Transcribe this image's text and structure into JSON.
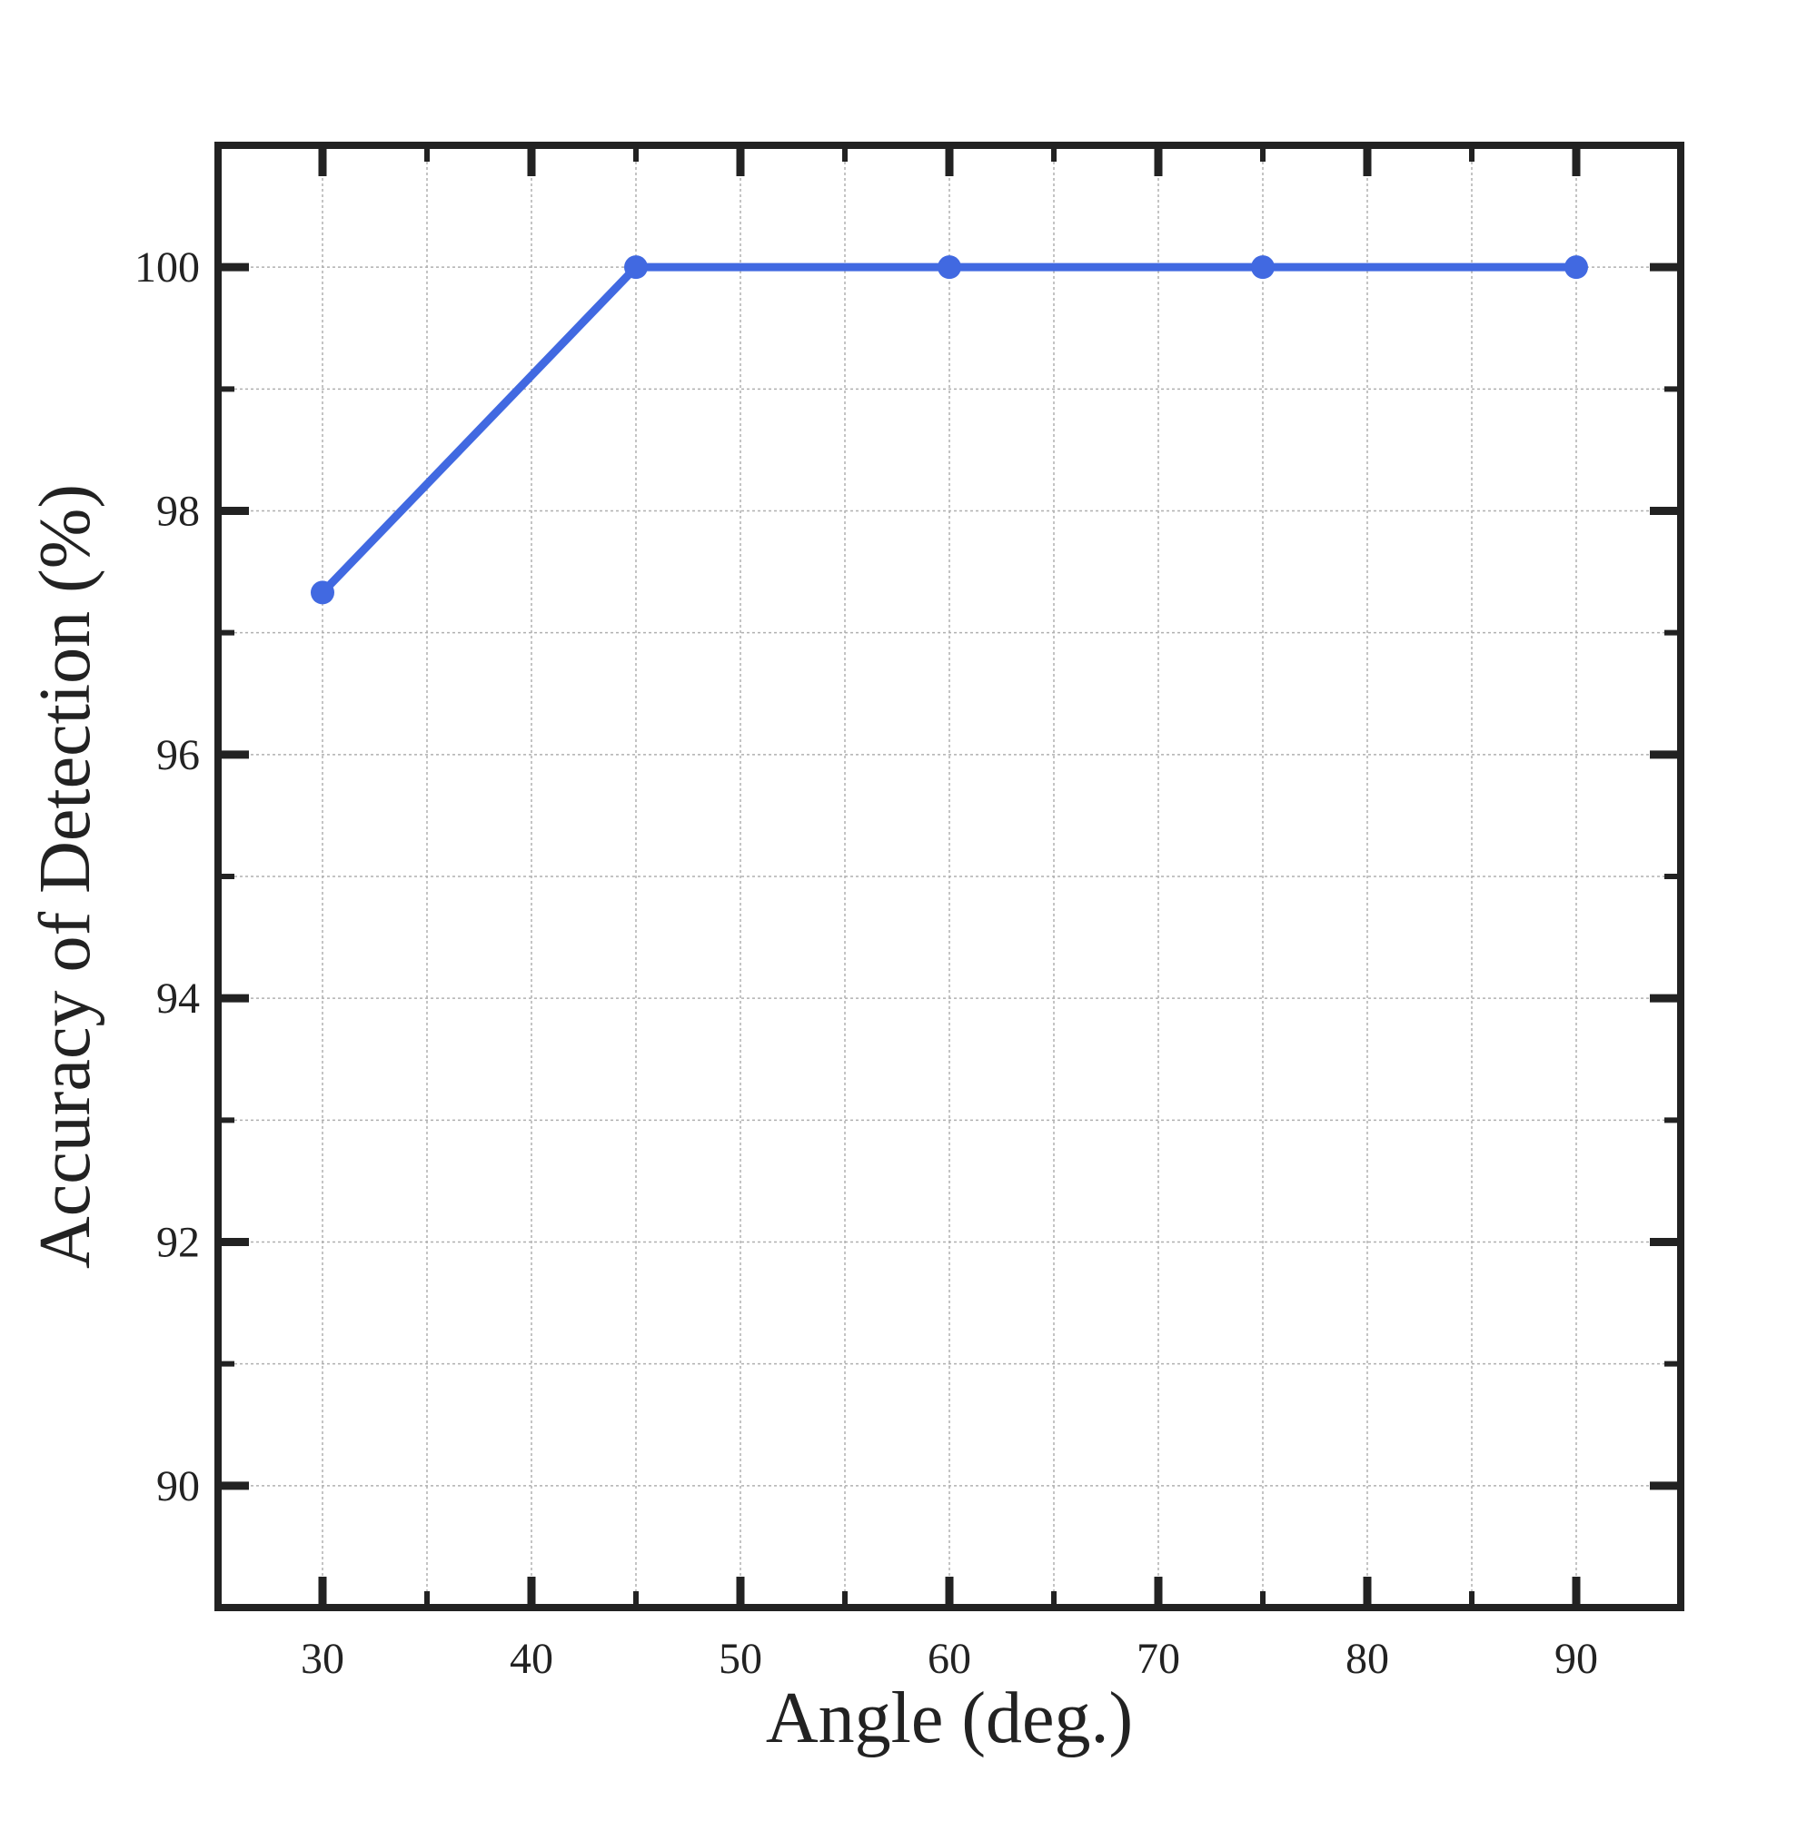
{
  "chart_data": {
    "type": "line",
    "title": "",
    "xlabel": "Angle (deg.)",
    "ylabel": "Accuracy of Detection (%)",
    "xlim": [
      25,
      95
    ],
    "ylim": [
      89,
      101
    ],
    "x_ticks": [
      30,
      40,
      50,
      60,
      70,
      80,
      90
    ],
    "x_tick_labels": [
      "30",
      "40",
      "50",
      "60",
      "70",
      "80",
      "90"
    ],
    "x_minor_ticks": [
      35,
      45,
      55,
      65,
      75,
      85
    ],
    "y_ticks": [
      90,
      92,
      94,
      96,
      98,
      100
    ],
    "y_tick_labels": [
      "90",
      "92",
      "94",
      "96",
      "98",
      "100"
    ],
    "y_minor_ticks": [
      91,
      93,
      95,
      97,
      99
    ],
    "grid": true,
    "legend": "none",
    "series": [
      {
        "color": "#4169E1",
        "marker": "circle",
        "x": [
          30,
          45,
          60,
          75,
          90
        ],
        "y": [
          97.33,
          100,
          100,
          100,
          100
        ]
      }
    ],
    "colors": {
      "line": "#4169E1",
      "frame": "#222222",
      "grid": "#b0b0b0",
      "text": "#222222"
    }
  }
}
